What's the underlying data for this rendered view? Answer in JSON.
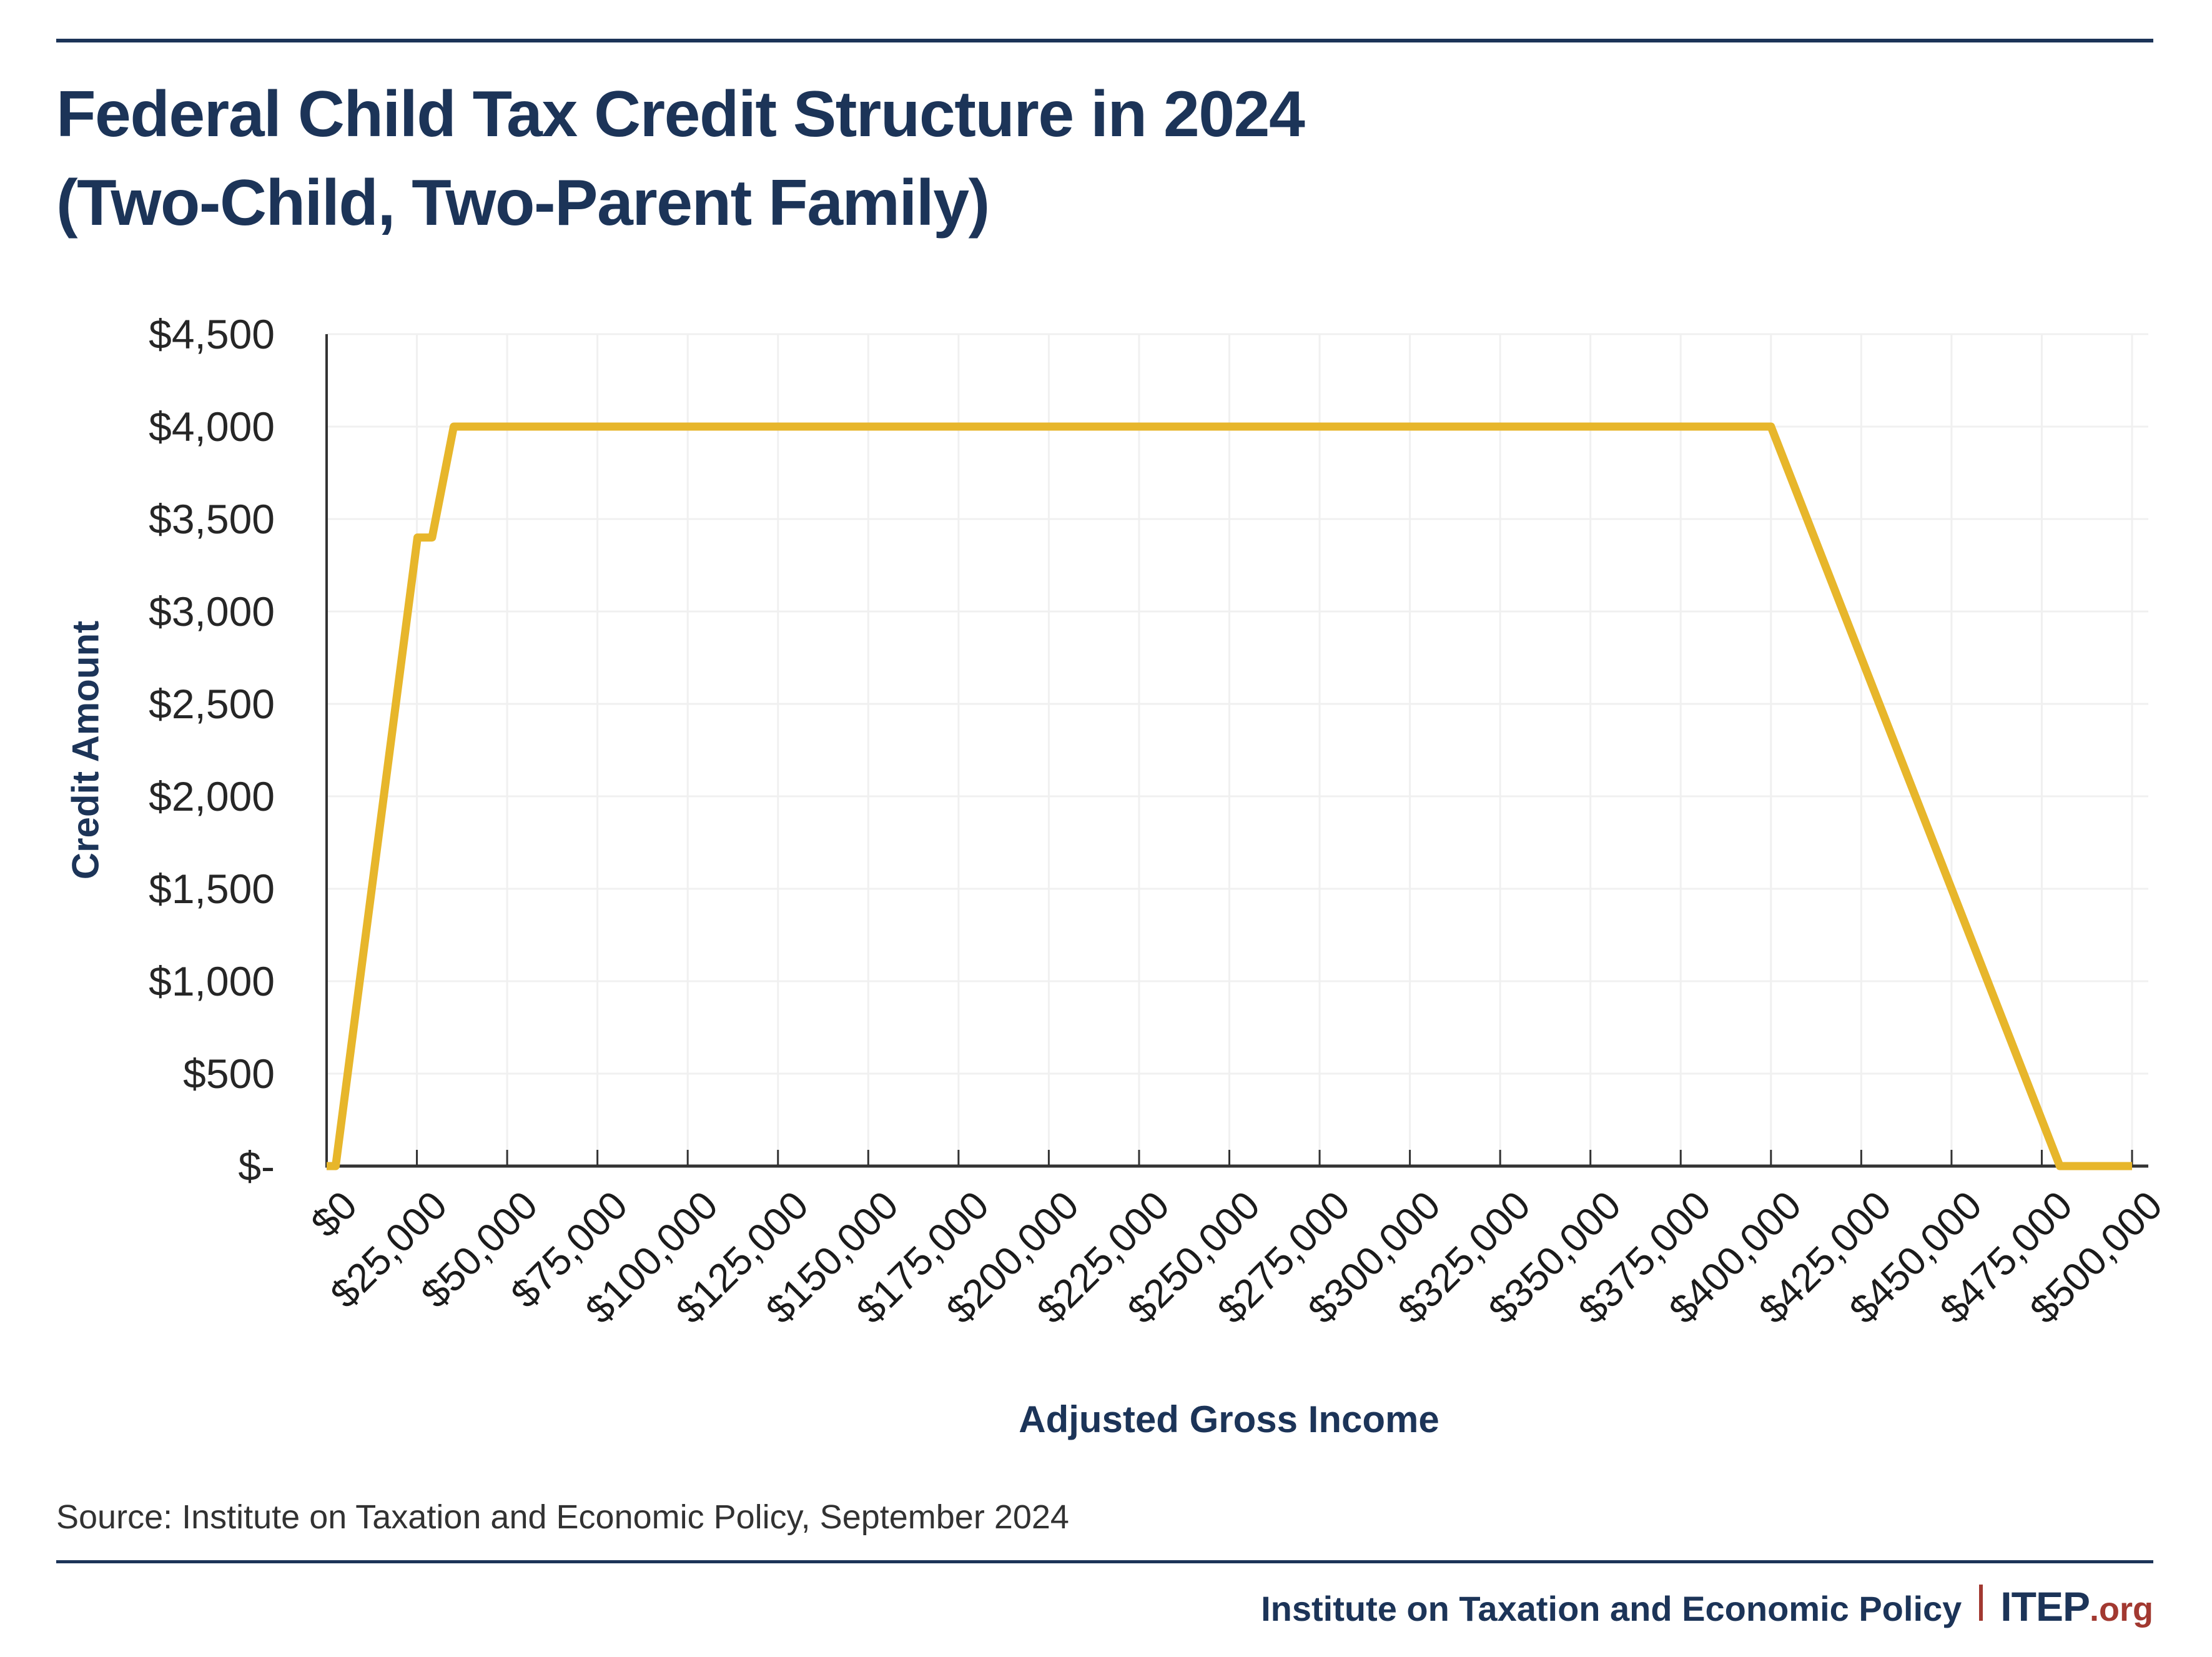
{
  "header": {
    "title_line1": "Federal Child Tax Credit Structure in 2024",
    "title_line2": "(Two-Child, Two-Parent Family)"
  },
  "chart_data": {
    "type": "line",
    "title": "Federal Child Tax Credit Structure in 2024 (Two-Child, Two-Parent Family)",
    "xlabel": "Adjusted Gross Income",
    "ylabel": "Credit Amount",
    "xlim": [
      0,
      500000
    ],
    "ylim": [
      0,
      4500
    ],
    "grid": true,
    "legend": "none",
    "x_ticks": [
      {
        "value": 0,
        "label": "$0"
      },
      {
        "value": 25000,
        "label": "$25,000"
      },
      {
        "value": 50000,
        "label": "$50,000"
      },
      {
        "value": 75000,
        "label": "$75,000"
      },
      {
        "value": 100000,
        "label": "$100,000"
      },
      {
        "value": 125000,
        "label": "$125,000"
      },
      {
        "value": 150000,
        "label": "$150,000"
      },
      {
        "value": 175000,
        "label": "$175,000"
      },
      {
        "value": 200000,
        "label": "$200,000"
      },
      {
        "value": 225000,
        "label": "$225,000"
      },
      {
        "value": 250000,
        "label": "$250,000"
      },
      {
        "value": 275000,
        "label": "$275,000"
      },
      {
        "value": 300000,
        "label": "$300,000"
      },
      {
        "value": 325000,
        "label": "$325,000"
      },
      {
        "value": 350000,
        "label": "$350,000"
      },
      {
        "value": 375000,
        "label": "$375,000"
      },
      {
        "value": 400000,
        "label": "$400,000"
      },
      {
        "value": 425000,
        "label": "$425,000"
      },
      {
        "value": 450000,
        "label": "$450,000"
      },
      {
        "value": 475000,
        "label": "$475,000"
      },
      {
        "value": 500000,
        "label": "$500,000"
      }
    ],
    "y_ticks": [
      {
        "value": 0,
        "label": "$-"
      },
      {
        "value": 500,
        "label": "$500"
      },
      {
        "value": 1000,
        "label": "$1,000"
      },
      {
        "value": 1500,
        "label": "$1,500"
      },
      {
        "value": 2000,
        "label": "$2,000"
      },
      {
        "value": 2500,
        "label": "$2,500"
      },
      {
        "value": 3000,
        "label": "$3,000"
      },
      {
        "value": 3500,
        "label": "$3,500"
      },
      {
        "value": 4000,
        "label": "$4,000"
      },
      {
        "value": 4500,
        "label": "$4,500"
      }
    ],
    "series": [
      {
        "name": "Child Tax Credit",
        "color": "#E7B62B",
        "points": [
          [
            0,
            0
          ],
          [
            2500,
            0
          ],
          [
            25167,
            3400
          ],
          [
            29200,
            3400
          ],
          [
            35200,
            4000
          ],
          [
            400000,
            4000
          ],
          [
            480000,
            0
          ],
          [
            500000,
            0
          ]
        ]
      }
    ]
  },
  "source": {
    "text": "Source: Institute on Taxation and Economic Policy, September 2024"
  },
  "footer": {
    "org_name": "Institute on Taxation and Economic Policy",
    "separator": "|",
    "brand": "ITEP",
    "brand_suffix": ".org"
  },
  "colors": {
    "navy": "#1C3458",
    "gold": "#E7B62B",
    "brand_red": "#A23931",
    "axis": "#333333",
    "gridline": "#F0F0F0",
    "tick_text": "#1b1b1b"
  }
}
